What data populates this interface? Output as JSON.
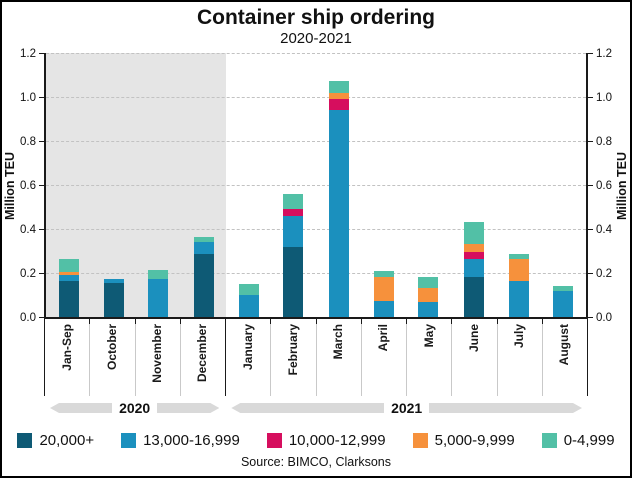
{
  "title": "Container ship ordering",
  "subtitle": "2020-2021",
  "source": "Source: BIMCO, Clarksons",
  "axis": {
    "y_label": "Million TEU",
    "ticks": [
      "0.0",
      "0.2",
      "0.4",
      "0.6",
      "0.8",
      "1.0",
      "1.2"
    ]
  },
  "colors": {
    "band_2020_bg": "#e5e5e5",
    "gridline": "#c2c2c2",
    "axis": "#1a1a1a",
    "year_arrow": "#d9d9d9"
  },
  "legend": [
    {
      "label": "20,000+",
      "color": "#0e5a75"
    },
    {
      "label": "13,000-16,999",
      "color": "#1b90be"
    },
    {
      "label": "10,000-12,999",
      "color": "#d60e5e"
    },
    {
      "label": "5,000-9,999",
      "color": "#f6913c"
    },
    {
      "label": "0-4,999",
      "color": "#52c0a6"
    }
  ],
  "chart_data": {
    "type": "bar",
    "stacked": true,
    "title": "Container ship ordering",
    "subtitle": "2020-2021",
    "ylabel": "Million TEU",
    "ylim": [
      0,
      1.2
    ],
    "grid": "dashed horizontal at 0.2 intervals",
    "legend_position": "bottom",
    "categories": [
      "Jan-Sep",
      "October",
      "November",
      "December",
      "January",
      "February",
      "March",
      "April",
      "May",
      "June",
      "July",
      "August"
    ],
    "groups": [
      {
        "year": "2020",
        "months": [
          "Jan-Sep",
          "October",
          "November",
          "December"
        ],
        "shaded": true
      },
      {
        "year": "2021",
        "months": [
          "January",
          "February",
          "March",
          "April",
          "May",
          "June",
          "July",
          "August"
        ],
        "shaded": false
      }
    ],
    "series": [
      {
        "name": "20,000+",
        "color": "#0e5a75",
        "values": [
          0.165,
          0.155,
          0,
          0.285,
          0,
          0.32,
          0,
          0,
          0,
          0.18,
          0,
          0
        ]
      },
      {
        "name": "13,000-16,999",
        "color": "#1b90be",
        "values": [
          0.025,
          0.02,
          0.175,
          0.055,
          0.1,
          0.14,
          0.94,
          0.075,
          0.07,
          0.085,
          0.165,
          0.12
        ]
      },
      {
        "name": "10,000-12,999",
        "color": "#d60e5e",
        "values": [
          0,
          0,
          0,
          0,
          0,
          0.03,
          0.05,
          0,
          0,
          0.03,
          0,
          0
        ]
      },
      {
        "name": "5,000-9,999",
        "color": "#f6913c",
        "values": [
          0.015,
          0,
          0,
          0,
          0,
          0,
          0.03,
          0.105,
          0.06,
          0.035,
          0.1,
          0
        ]
      },
      {
        "name": "0-4,999",
        "color": "#52c0a6",
        "values": [
          0.06,
          0,
          0.04,
          0.025,
          0.05,
          0.07,
          0.055,
          0.03,
          0.05,
          0.1,
          0.02,
          0.02
        ]
      }
    ],
    "totals": [
      0.265,
      0.175,
      0.215,
      0.365,
      0.15,
      0.56,
      1.075,
      0.21,
      0.18,
      0.43,
      0.285,
      0.14
    ]
  }
}
